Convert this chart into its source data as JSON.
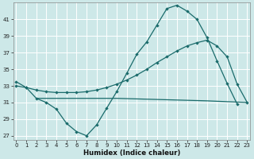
{
  "xlabel": "Humidex (Indice chaleur)",
  "bg_color": "#cde8e8",
  "grid_color": "#b8d8d8",
  "line_color": "#1a6b6b",
  "ylim": [
    26.5,
    43
  ],
  "yticks": [
    27,
    29,
    31,
    33,
    35,
    37,
    39,
    41
  ],
  "xlim": [
    -0.3,
    23.3
  ],
  "xticks": [
    0,
    1,
    2,
    3,
    4,
    5,
    6,
    7,
    8,
    9,
    10,
    11,
    12,
    13,
    14,
    15,
    16,
    17,
    18,
    19,
    20,
    21,
    22,
    23
  ],
  "s1_x": [
    0,
    1,
    2,
    3,
    4,
    5,
    6,
    7,
    8,
    9,
    10,
    11,
    12,
    13,
    14,
    15,
    16,
    17,
    18,
    19,
    20,
    21,
    22
  ],
  "s1_y": [
    33.5,
    32.8,
    31.5,
    31.0,
    30.2,
    28.5,
    27.5,
    27.0,
    28.3,
    30.3,
    32.3,
    34.5,
    36.8,
    38.3,
    40.3,
    42.3,
    42.7,
    42.0,
    41.0,
    38.8,
    36.0,
    33.3,
    30.8
  ],
  "s2_x": [
    0,
    1,
    2,
    3,
    4,
    5,
    6,
    7,
    8,
    9,
    10,
    11,
    12,
    13,
    14,
    15,
    16,
    17,
    18,
    19,
    20,
    21,
    22,
    23
  ],
  "s2_y": [
    33.0,
    32.8,
    32.5,
    32.3,
    32.2,
    32.2,
    32.2,
    32.3,
    32.5,
    32.8,
    33.2,
    33.7,
    34.3,
    35.0,
    35.8,
    36.5,
    37.2,
    37.8,
    38.2,
    38.5,
    37.8,
    36.5,
    33.2,
    31.0
  ],
  "s3_x": [
    2,
    3,
    10,
    19,
    23
  ],
  "s3_y": [
    31.5,
    31.5,
    31.5,
    31.2,
    31.0
  ]
}
